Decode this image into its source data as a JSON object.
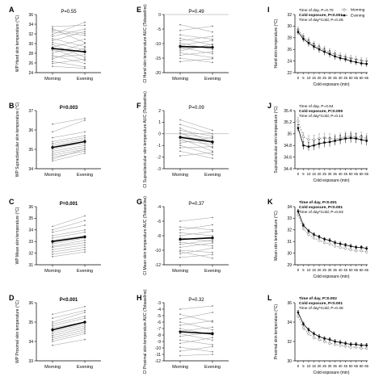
{
  "figure": {
    "legend": {
      "morning": "Morning",
      "evening": "Evening"
    }
  },
  "chart_data": [
    {
      "panel": "A",
      "type": "line",
      "kind": "paired",
      "ylabel": "WP Hand skin temperature (°C)",
      "categories": [
        "Morning",
        "Evening"
      ],
      "ylim": [
        24,
        36
      ],
      "yticks": [
        24,
        26,
        28,
        30,
        32,
        34,
        36
      ],
      "pvalue": "P=0.55",
      "pbold": false,
      "mean": [
        29.0,
        28.3
      ],
      "pairs": [
        [
          33.5,
          33.8
        ],
        [
          33.1,
          30.2
        ],
        [
          32.8,
          32.1
        ],
        [
          32.4,
          31.7
        ],
        [
          31.9,
          34.4
        ],
        [
          31.5,
          33.0
        ],
        [
          31.0,
          29.4
        ],
        [
          30.6,
          32.5
        ],
        [
          30.2,
          28.7
        ],
        [
          29.8,
          27.2
        ],
        [
          29.3,
          30.9
        ],
        [
          28.9,
          26.5
        ],
        [
          28.5,
          28.4
        ],
        [
          28.0,
          30.0
        ],
        [
          27.6,
          25.9
        ],
        [
          27.2,
          27.7
        ],
        [
          26.8,
          29.1
        ],
        [
          26.3,
          25.2
        ],
        [
          25.9,
          26.8
        ],
        [
          25.3,
          24.9
        ]
      ]
    },
    {
      "panel": "B",
      "type": "line",
      "kind": "paired",
      "ylabel": "WP Supraclavicular skin temperature (°C)",
      "categories": [
        "Morning",
        "Evening"
      ],
      "ylim": [
        34,
        37
      ],
      "yticks": [
        34,
        35,
        36,
        37
      ],
      "pvalue": "P=0.003",
      "pbold": true,
      "mean": [
        35.1,
        35.4
      ],
      "pairs": [
        [
          36.3,
          36.6
        ],
        [
          35.9,
          36.5
        ],
        [
          35.6,
          35.9
        ],
        [
          35.4,
          35.7
        ],
        [
          35.3,
          35.6
        ],
        [
          35.2,
          35.5
        ],
        [
          35.1,
          35.3
        ],
        [
          35.0,
          35.4
        ],
        [
          34.9,
          35.2
        ],
        [
          34.8,
          35.1
        ],
        [
          34.7,
          35.0
        ],
        [
          34.6,
          34.9
        ],
        [
          34.5,
          35.0
        ],
        [
          34.4,
          34.8
        ]
      ]
    },
    {
      "panel": "C",
      "type": "line",
      "kind": "paired",
      "ylabel": "WP Mean skin temperature (°C)",
      "categories": [
        "Morning",
        "Evening"
      ],
      "ylim": [
        31,
        36
      ],
      "yticks": [
        31,
        32,
        33,
        34,
        35,
        36
      ],
      "pvalue": "P=0.001",
      "pbold": true,
      "mean": [
        33.0,
        33.4
      ],
      "pairs": [
        [
          34.3,
          35.2
        ],
        [
          34.0,
          34.8
        ],
        [
          33.8,
          34.4
        ],
        [
          33.5,
          34.0
        ],
        [
          33.3,
          33.8
        ],
        [
          33.1,
          33.5
        ],
        [
          33.0,
          33.4
        ],
        [
          32.8,
          33.3
        ],
        [
          32.6,
          33.1
        ],
        [
          32.5,
          32.9
        ],
        [
          32.3,
          32.7
        ],
        [
          32.1,
          32.5
        ],
        [
          31.9,
          32.3
        ],
        [
          31.7,
          32.1
        ]
      ]
    },
    {
      "panel": "D",
      "type": "line",
      "kind": "paired",
      "ylabel": "WP Proximal skin temperature (°C)",
      "categories": [
        "Morning",
        "Evening"
      ],
      "ylim": [
        33,
        36
      ],
      "yticks": [
        33,
        34,
        35,
        36
      ],
      "pvalue": "P<0.001",
      "pbold": true,
      "mean": [
        34.6,
        35.0
      ],
      "pairs": [
        [
          35.4,
          35.8
        ],
        [
          35.2,
          35.6
        ],
        [
          35.0,
          35.5
        ],
        [
          34.9,
          35.3
        ],
        [
          34.8,
          35.2
        ],
        [
          34.7,
          35.0
        ],
        [
          34.6,
          35.0
        ],
        [
          34.5,
          34.9
        ],
        [
          34.4,
          34.8
        ],
        [
          34.3,
          34.7
        ],
        [
          34.1,
          34.5
        ],
        [
          34.0,
          34.4
        ],
        [
          33.8,
          34.1
        ],
        [
          34.2,
          34.6
        ]
      ]
    },
    {
      "panel": "E",
      "type": "line",
      "kind": "paired",
      "ylabel": "CI Hand skin temperature AUC (Tobaseline)",
      "categories": [
        "Morning",
        "Evening"
      ],
      "ylim": [
        -20,
        0
      ],
      "yticks": [
        -20,
        -15,
        -10,
        -5,
        0
      ],
      "pvalue": "P=0.49",
      "pbold": false,
      "mean": [
        -11.0,
        -11.3
      ],
      "pairs": [
        [
          -3.5,
          -6.0
        ],
        [
          -5.5,
          -4.0
        ],
        [
          -7.0,
          -8.5
        ],
        [
          -8.2,
          -10.5
        ],
        [
          -9.0,
          -7.5
        ],
        [
          -9.8,
          -12.0
        ],
        [
          -10.5,
          -9.0
        ],
        [
          -11.2,
          -13.5
        ],
        [
          -11.8,
          -11.0
        ],
        [
          -12.5,
          -10.2
        ],
        [
          -13.2,
          -14.8
        ],
        [
          -14.0,
          -12.8
        ],
        [
          -15.0,
          -16.5
        ],
        [
          -16.2,
          -15.2
        ]
      ]
    },
    {
      "panel": "F",
      "type": "line",
      "kind": "paired",
      "ylabel": "CI Supraclavicular skin temperature AUC (Tobaseline)",
      "categories": [
        "Morning",
        "Evening"
      ],
      "ylim": [
        -3,
        2
      ],
      "yticks": [
        -3,
        -2,
        -1,
        0,
        1,
        2
      ],
      "pvalue": "P=0.09",
      "pbold": false,
      "mean": [
        -0.3,
        -0.7
      ],
      "pairs": [
        [
          1.2,
          0.3
        ],
        [
          0.8,
          0.0
        ],
        [
          0.5,
          -0.8
        ],
        [
          0.3,
          -0.2
        ],
        [
          0.1,
          -1.2
        ],
        [
          0.0,
          -0.4
        ],
        [
          -0.2,
          -0.6
        ],
        [
          -0.4,
          -1.5
        ],
        [
          -0.6,
          -0.9
        ],
        [
          -0.8,
          -0.3
        ],
        [
          -1.0,
          -1.8
        ],
        [
          -1.2,
          -1.1
        ],
        [
          -1.5,
          -2.1
        ],
        [
          -1.9,
          -1.6
        ]
      ]
    },
    {
      "panel": "G",
      "type": "line",
      "kind": "paired",
      "ylabel": "CI Mean skin temperature AUC (Tobaseline)",
      "categories": [
        "Morning",
        "Evening"
      ],
      "ylim": [
        -12,
        -4
      ],
      "yticks": [
        -12,
        -10,
        -8,
        -6,
        -4
      ],
      "pvalue": "P=0.37",
      "pbold": false,
      "mean": [
        -8.5,
        -8.3
      ],
      "pairs": [
        [
          -6.0,
          -5.5
        ],
        [
          -6.8,
          -7.2
        ],
        [
          -7.2,
          -6.5
        ],
        [
          -7.6,
          -8.0
        ],
        [
          -8.0,
          -7.4
        ],
        [
          -8.3,
          -8.8
        ],
        [
          -8.6,
          -8.2
        ],
        [
          -8.9,
          -9.4
        ],
        [
          -9.2,
          -8.6
        ],
        [
          -9.6,
          -9.0
        ],
        [
          -10.0,
          -10.3
        ],
        [
          -10.5,
          -9.7
        ],
        [
          -11.0,
          -10.6
        ],
        [
          -10.2,
          -11.1
        ]
      ]
    },
    {
      "panel": "H",
      "type": "line",
      "kind": "paired",
      "ylabel": "CI Proximal skin temperature AUC (Tobaseline)",
      "categories": [
        "Morning",
        "Evening"
      ],
      "ylim": [
        -12,
        -3
      ],
      "yticks": [
        -12,
        -11,
        -10,
        -9,
        -8,
        -7,
        -6,
        -5,
        -4,
        -3
      ],
      "pvalue": "P=0.32",
      "pbold": false,
      "mean": [
        -7.5,
        -7.8
      ],
      "pairs": [
        [
          -4.0,
          -3.5
        ],
        [
          -4.8,
          -6.0
        ],
        [
          -5.5,
          -4.5
        ],
        [
          -6.0,
          -7.2
        ],
        [
          -6.5,
          -5.8
        ],
        [
          -7.0,
          -8.0
        ],
        [
          -7.4,
          -6.8
        ],
        [
          -7.8,
          -8.8
        ],
        [
          -8.2,
          -7.6
        ],
        [
          -8.8,
          -9.5
        ],
        [
          -9.3,
          -8.4
        ],
        [
          -9.9,
          -10.6
        ],
        [
          -10.5,
          -9.8
        ],
        [
          -11.2,
          -11.0
        ]
      ]
    },
    {
      "panel": "I",
      "type": "line",
      "kind": "timecourse",
      "ylabel": "Hand skin temperature (°C)",
      "xlabel": "Cold exposure (min)",
      "x": [
        0,
        5,
        10,
        15,
        20,
        25,
        30,
        35,
        40,
        45,
        50,
        55,
        60,
        65
      ],
      "xlim": [
        -3,
        66
      ],
      "ylim": [
        22,
        32
      ],
      "yticks": [
        22,
        24,
        26,
        28,
        30,
        32
      ],
      "stats": [
        {
          "text": "Time of day, P=0.70",
          "bold": false
        },
        {
          "text": "Cold exposure, P<0.001",
          "bold": true
        },
        {
          "text": "Time of day*Cold, P=0.28",
          "bold": false
        }
      ],
      "series": [
        {
          "name": "Morning",
          "values": [
            29.4,
            28.2,
            27.4,
            26.8,
            26.3,
            25.9,
            25.5,
            25.2,
            24.9,
            24.7,
            24.5,
            24.3,
            24.1,
            24.0
          ],
          "err": [
            0.5,
            0.5,
            0.6,
            0.6,
            0.6,
            0.6,
            0.6,
            0.6,
            0.5,
            0.5,
            0.5,
            0.5,
            0.5,
            0.5
          ]
        },
        {
          "name": "Evening",
          "values": [
            29.0,
            27.8,
            27.1,
            26.5,
            26.0,
            25.6,
            25.2,
            24.8,
            24.5,
            24.3,
            24.0,
            23.8,
            23.6,
            23.5
          ],
          "err": [
            0.5,
            0.5,
            0.6,
            0.6,
            0.6,
            0.6,
            0.6,
            0.6,
            0.5,
            0.5,
            0.5,
            0.5,
            0.5,
            0.5
          ]
        }
      ]
    },
    {
      "panel": "J",
      "type": "line",
      "kind": "timecourse",
      "ylabel": "Supraclavicular skin temperature (°C)",
      "xlabel": "Cold exposure (min)",
      "x": [
        0,
        5,
        10,
        15,
        20,
        25,
        30,
        35,
        40,
        45,
        50,
        55,
        60,
        65
      ],
      "xlim": [
        -3,
        66
      ],
      "ylim": [
        34.4,
        35.4
      ],
      "yticks": [
        34.4,
        34.6,
        34.8,
        35.0,
        35.2,
        35.4
      ],
      "stats": [
        {
          "text": "Time of day, P=0.64",
          "bold": false
        },
        {
          "text": "Cold exposure, P=0.009",
          "bold": true
        },
        {
          "text": "Time of day*Cold, P=0.14",
          "bold": false
        }
      ],
      "series": [
        {
          "name": "Morning",
          "values": [
            35.22,
            34.95,
            34.9,
            34.9,
            34.92,
            34.93,
            34.92,
            34.91,
            34.93,
            34.95,
            34.96,
            34.94,
            34.95,
            34.92
          ],
          "err": [
            0.06,
            0.07,
            0.07,
            0.08,
            0.08,
            0.08,
            0.08,
            0.08,
            0.08,
            0.08,
            0.08,
            0.08,
            0.08,
            0.08
          ]
        },
        {
          "name": "Evening",
          "values": [
            35.1,
            34.8,
            34.78,
            34.8,
            34.83,
            34.85,
            34.86,
            34.88,
            34.9,
            34.92,
            34.93,
            34.92,
            34.9,
            34.88
          ],
          "err": [
            0.06,
            0.07,
            0.07,
            0.08,
            0.08,
            0.08,
            0.08,
            0.08,
            0.08,
            0.08,
            0.08,
            0.08,
            0.08,
            0.08
          ]
        }
      ]
    },
    {
      "panel": "K",
      "type": "line",
      "kind": "timecourse",
      "ylabel": "Mean skin temperature (°C)",
      "xlabel": "Cold exposure (min)",
      "x": [
        0,
        5,
        10,
        15,
        20,
        25,
        30,
        35,
        40,
        45,
        50,
        55,
        60,
        65
      ],
      "xlim": [
        -3,
        66
      ],
      "ylim": [
        29,
        34
      ],
      "yticks": [
        29,
        30,
        31,
        32,
        33,
        34
      ],
      "stats": [
        {
          "text": "Time of day, P<0.001",
          "bold": true
        },
        {
          "text": "Cold exposure, P<0.001",
          "bold": true
        },
        {
          "text": "Time of day*Cold, P=0.63",
          "bold": false
        }
      ],
      "series": [
        {
          "name": "Morning",
          "values": [
            33.3,
            32.1,
            31.6,
            31.3,
            31.1,
            30.9,
            30.8,
            30.6,
            30.5,
            30.4,
            30.3,
            30.2,
            30.2,
            30.1
          ],
          "err": [
            0.15,
            0.15,
            0.15,
            0.15,
            0.15,
            0.15,
            0.15,
            0.15,
            0.15,
            0.15,
            0.15,
            0.15,
            0.15,
            0.15
          ]
        },
        {
          "name": "Evening",
          "values": [
            33.6,
            32.4,
            31.9,
            31.6,
            31.4,
            31.2,
            31.1,
            30.9,
            30.8,
            30.7,
            30.6,
            30.5,
            30.5,
            30.4
          ],
          "err": [
            0.15,
            0.15,
            0.15,
            0.15,
            0.15,
            0.15,
            0.15,
            0.15,
            0.15,
            0.15,
            0.15,
            0.15,
            0.15,
            0.15
          ]
        }
      ]
    },
    {
      "panel": "L",
      "type": "line",
      "kind": "timecourse",
      "ylabel": "Proximal skin temperature (°C)",
      "xlabel": "Cold exposure (min)",
      "x": [
        0,
        5,
        10,
        15,
        20,
        25,
        30,
        35,
        40,
        45,
        50,
        55,
        60,
        65
      ],
      "xlim": [
        -3,
        66
      ],
      "ylim": [
        30,
        36
      ],
      "yticks": [
        30,
        32,
        34,
        36
      ],
      "stats": [
        {
          "text": "Time of day, P=0.002",
          "bold": true
        },
        {
          "text": "Cold exposure, P<0.001",
          "bold": true
        },
        {
          "text": "Time of day*Cold, P=0.48",
          "bold": false
        }
      ],
      "series": [
        {
          "name": "Morning",
          "values": [
            34.6,
            33.4,
            32.8,
            32.4,
            32.2,
            32.0,
            31.8,
            31.7,
            31.6,
            31.5,
            31.4,
            31.4,
            31.3,
            31.3
          ],
          "err": [
            0.2,
            0.2,
            0.2,
            0.2,
            0.2,
            0.2,
            0.2,
            0.2,
            0.2,
            0.2,
            0.2,
            0.2,
            0.2,
            0.2
          ]
        },
        {
          "name": "Evening",
          "values": [
            35.0,
            33.8,
            33.2,
            32.8,
            32.5,
            32.3,
            32.2,
            32.0,
            31.9,
            31.8,
            31.7,
            31.7,
            31.6,
            31.6
          ],
          "err": [
            0.2,
            0.2,
            0.2,
            0.2,
            0.2,
            0.2,
            0.2,
            0.2,
            0.2,
            0.2,
            0.2,
            0.2,
            0.2,
            0.2
          ]
        }
      ]
    }
  ]
}
